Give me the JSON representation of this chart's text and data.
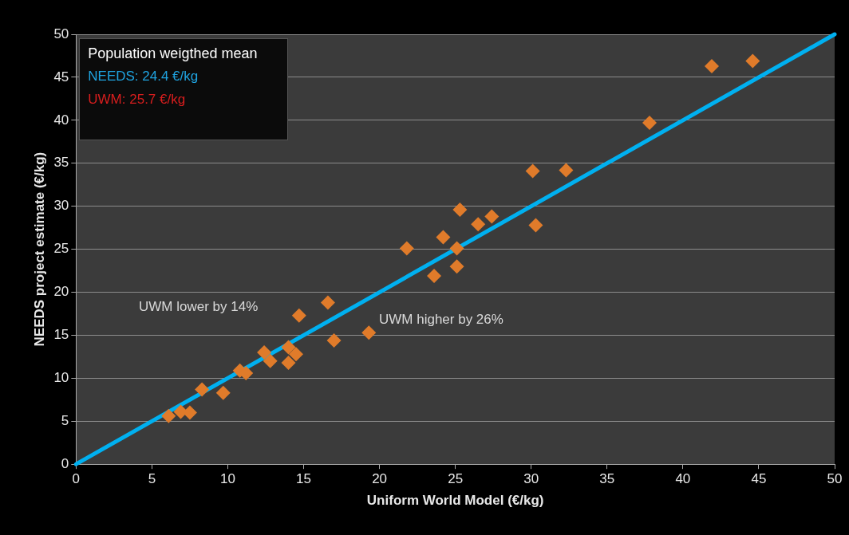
{
  "chart_data": {
    "type": "scatter",
    "xlabel": "Uniform World Model (€/kg)",
    "ylabel": "NEEDS project estimate (€/kg)",
    "xlim": [
      0,
      50
    ],
    "ylim": [
      0,
      50
    ],
    "xticks": [
      0,
      5,
      10,
      15,
      20,
      25,
      30,
      35,
      40,
      45,
      50
    ],
    "yticks": [
      0,
      5,
      10,
      15,
      20,
      25,
      30,
      35,
      40,
      45,
      50
    ],
    "grid": "y",
    "legend": false,
    "marker": "diamond",
    "series": [
      {
        "type": "scatter",
        "color": "#e07b2a",
        "x": [
          6.1,
          6.9,
          7.5,
          8.3,
          9.7,
          10.8,
          11.2,
          12.4,
          12.8,
          14.0,
          14.0,
          14.5,
          14.7,
          16.6,
          17.0,
          19.3,
          21.8,
          23.6,
          24.2,
          25.1,
          25.1,
          25.3,
          26.5,
          27.4,
          30.1,
          30.3,
          32.3,
          37.8,
          41.9,
          44.6
        ],
        "values": [
          5.6,
          6.1,
          6.0,
          8.7,
          8.3,
          10.9,
          10.6,
          13.0,
          12.0,
          13.6,
          11.8,
          12.8,
          17.3,
          18.8,
          14.4,
          15.3,
          25.1,
          21.9,
          26.4,
          23.0,
          25.1,
          29.6,
          27.9,
          28.8,
          34.1,
          27.8,
          34.2,
          39.7,
          46.3,
          46.9
        ]
      },
      {
        "type": "line",
        "color": "#00b0f0",
        "x": [
          0,
          50
        ],
        "values": [
          0,
          50
        ],
        "marker": "none",
        "line_style": "solid"
      }
    ],
    "annotations": [
      "Population weigthed mean",
      "NEEDS: 24.4 €/kg",
      "UWM: 25.7 €/kg",
      "UWM lower by 14%",
      "UWM higher by 26%"
    ]
  }
}
